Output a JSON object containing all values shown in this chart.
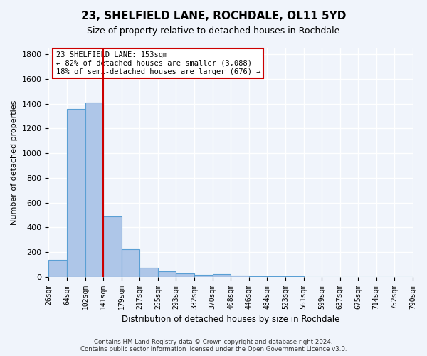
{
  "title": "23, SHELFIELD LANE, ROCHDALE, OL11 5YD",
  "subtitle": "Size of property relative to detached houses in Rochdale",
  "xlabel": "Distribution of detached houses by size in Rochdale",
  "ylabel": "Number of detached properties",
  "bar_values": [
    135,
    1355,
    1410,
    490,
    225,
    75,
    45,
    25,
    15,
    20,
    10,
    5,
    3,
    2,
    1,
    1,
    0,
    0,
    0,
    0
  ],
  "bin_labels": [
    "26sqm",
    "64sqm",
    "102sqm",
    "141sqm",
    "179sqm",
    "217sqm",
    "255sqm",
    "293sqm",
    "332sqm",
    "370sqm",
    "408sqm",
    "446sqm",
    "484sqm",
    "523sqm",
    "561sqm",
    "599sqm",
    "637sqm",
    "675sqm",
    "714sqm",
    "752sqm",
    "790sqm"
  ],
  "bar_color": "#aec6e8",
  "bar_edge_color": "#5a9fd4",
  "vline_x": 3,
  "vline_color": "#cc0000",
  "annotation_text": "23 SHELFIELD LANE: 153sqm\n← 82% of detached houses are smaller (3,088)\n18% of semi-detached houses are larger (676) →",
  "annotation_box_color": "#ffffff",
  "annotation_box_edge": "#cc0000",
  "ylim": [
    0,
    1850
  ],
  "yticks": [
    0,
    200,
    400,
    600,
    800,
    1000,
    1200,
    1400,
    1600,
    1800
  ],
  "bg_color": "#f0f4fb",
  "grid_color": "#ffffff",
  "footer": "Contains HM Land Registry data © Crown copyright and database right 2024.\nContains public sector information licensed under the Open Government Licence v3.0."
}
